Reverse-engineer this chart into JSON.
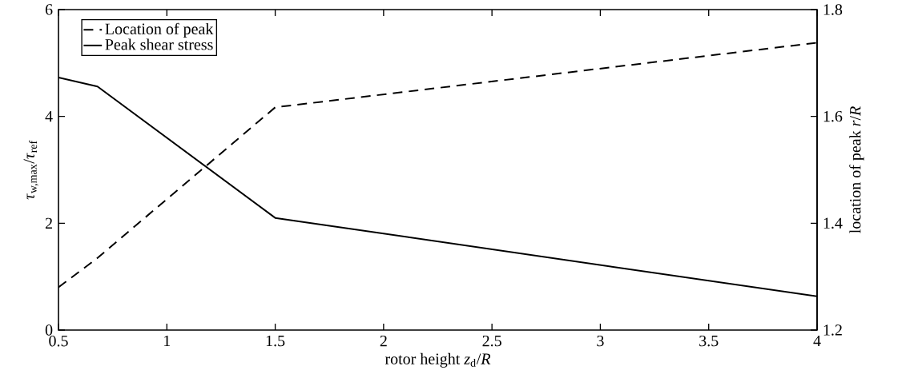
{
  "chart_data": {
    "type": "line",
    "xlabel": "rotor height *z*$_{d}$/*R*",
    "ylabel": "*τ*$_{w,max}$/*τ*$_{ref}$",
    "y2label": "location of peak *r*/*R*",
    "x": [
      0.5,
      0.68,
      1.5,
      4
    ],
    "xlim": [
      0.5,
      4
    ],
    "xticks": [
      0.5,
      1,
      1.5,
      2,
      2.5,
      3,
      3.5,
      4
    ],
    "ylim": [
      0,
      6
    ],
    "yticks": [
      0,
      2,
      4,
      6
    ],
    "y2lim": [
      1.2,
      1.8
    ],
    "y2ticks": [
      1.2,
      1.4,
      1.6,
      1.8
    ],
    "legend": "top left",
    "marker": "none",
    "grid": false,
    "series": [
      {
        "name": "Location of peak",
        "color": "#000000",
        "axis": "y2",
        "line_style": "dashed",
        "values": [
          1.28,
          1.335,
          1.617,
          1.738
        ]
      },
      {
        "name": "Peak shear stress",
        "color": "#000000",
        "line_style": "solid",
        "values": [
          4.73,
          4.56,
          2.1,
          0.63
        ]
      }
    ]
  }
}
